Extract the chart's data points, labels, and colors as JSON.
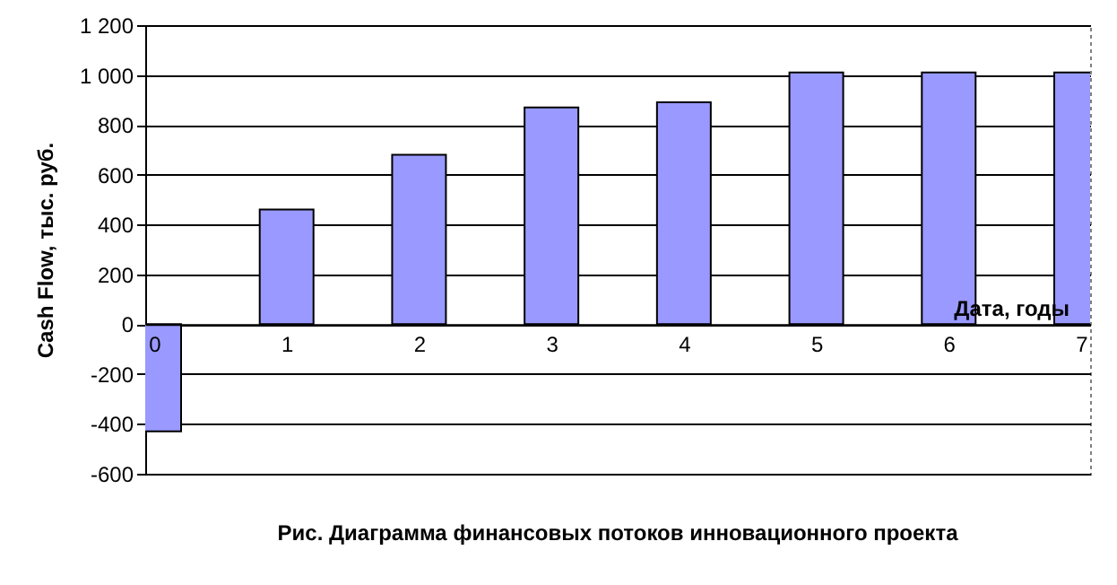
{
  "chart_data": {
    "type": "bar",
    "xlabel": "Дата, годы",
    "ylabel": "Cash Flow, тыс. руб.",
    "annotations": [
      "Рис. Диаграмма финансовых потоков инновационного проекта"
    ],
    "x": [
      0,
      1,
      2,
      3,
      4,
      5,
      6,
      7
    ],
    "values": [
      -430,
      460,
      680,
      870,
      890,
      1010,
      1010,
      1010
    ],
    "color": "#9999ff",
    "xlim": [
      0,
      7
    ],
    "xticks": [
      0,
      1,
      2,
      3,
      4,
      5,
      6,
      7
    ],
    "ylim": [
      -600,
      1200
    ],
    "yticks": [
      {
        "value": -600,
        "label": "-600"
      },
      {
        "value": -400,
        "label": "-400"
      },
      {
        "value": -200,
        "label": "-200"
      },
      0,
      200,
      400,
      600,
      800,
      {
        "value": 1000,
        "label": "1 000"
      },
      {
        "value": 1200,
        "label": "1 200"
      }
    ],
    "grid": "y"
  }
}
